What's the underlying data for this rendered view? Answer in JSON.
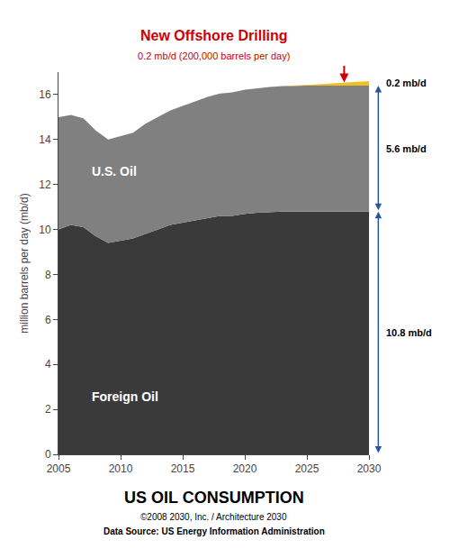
{
  "chart_data": {
    "type": "area",
    "stacked": true,
    "title": "US OIL CONSUMPTION",
    "subtitle": "©2008 2030, Inc. / Architecture 2030",
    "source": "Data Source: US Energy Information Administration",
    "ylabel": "million barrels per day (mb/d)",
    "annotations": [
      {
        "text": "New Offshore Drilling",
        "color": "#cc0000"
      },
      {
        "text": "0.2 mb/d (200,000 barrels per day)",
        "color": "#cc0000"
      }
    ],
    "x": [
      2005,
      2006,
      2007,
      2008,
      2009,
      2010,
      2011,
      2012,
      2013,
      2014,
      2015,
      2016,
      2017,
      2018,
      2019,
      2020,
      2021,
      2022,
      2023,
      2024,
      2025,
      2026,
      2027,
      2028,
      2029,
      2030
    ],
    "series": [
      {
        "name": "Foreign Oil",
        "color": "#3a3a3a",
        "end_label": "10.8 mb/d",
        "values": [
          10.0,
          10.2,
          10.1,
          9.7,
          9.4,
          9.5,
          9.6,
          9.8,
          10.0,
          10.2,
          10.3,
          10.4,
          10.5,
          10.6,
          10.6,
          10.7,
          10.75,
          10.78,
          10.8,
          10.8,
          10.8,
          10.8,
          10.8,
          10.8,
          10.8,
          10.8
        ]
      },
      {
        "name": "U.S. Oil",
        "color": "#808080",
        "end_label": "5.6 mb/d",
        "values": [
          5.0,
          4.9,
          4.85,
          4.7,
          4.6,
          4.65,
          4.7,
          4.9,
          5.0,
          5.1,
          5.2,
          5.3,
          5.4,
          5.45,
          5.5,
          5.52,
          5.54,
          5.56,
          5.58,
          5.6,
          5.6,
          5.6,
          5.6,
          5.6,
          5.6,
          5.6
        ]
      },
      {
        "color": "#f0c020",
        "end_label": "0.2 mb/d",
        "values": [
          0.0,
          0.0,
          0.0,
          0.0,
          0.0,
          0.0,
          0.0,
          0.0,
          0.0,
          0.0,
          0.0,
          0.0,
          0.0,
          0.0,
          0.0,
          0.0,
          0.0,
          0.0,
          0.0,
          0.0,
          0.03,
          0.06,
          0.1,
          0.14,
          0.17,
          0.2
        ]
      }
    ],
    "xlim": [
      2005,
      2030
    ],
    "xticks": [
      2005,
      2010,
      2015,
      2020,
      2025,
      2030
    ],
    "ylim": [
      0,
      17
    ],
    "yticks": [
      0,
      2,
      4,
      6,
      8,
      10,
      12,
      14,
      16
    ],
    "grid": false
  }
}
